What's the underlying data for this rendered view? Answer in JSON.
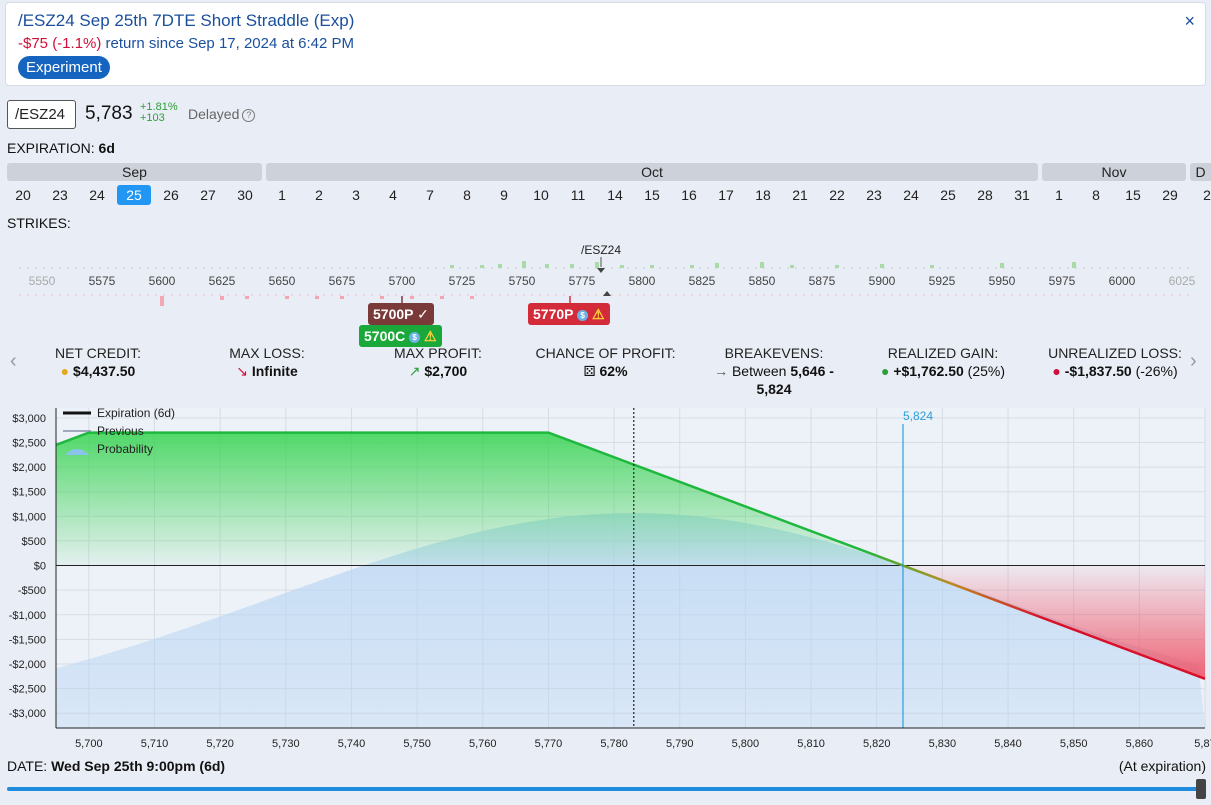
{
  "header": {
    "title": "/ESZ24 Sep 25th 7DTE Short Straddle (Exp)",
    "return_value": "-$75 (-1.1%)",
    "return_text": "return since Sep 17, 2024 at 6:42 PM",
    "badge": "Experiment",
    "close": "×"
  },
  "quote": {
    "symbol": "/ESZ24",
    "price": "5,783",
    "change_pct": "+1.81%",
    "change_abs": "+103",
    "delayed": "Delayed",
    "help": "?"
  },
  "expiration": {
    "label": "EXPIRATION:",
    "value": "6d"
  },
  "months": [
    "Sep",
    "Oct",
    "Nov",
    "D"
  ],
  "days": [
    "20",
    "23",
    "24",
    "25",
    "26",
    "27",
    "30",
    "1",
    "2",
    "3",
    "4",
    "7",
    "8",
    "9",
    "10",
    "11",
    "14",
    "15",
    "16",
    "17",
    "18",
    "21",
    "22",
    "23",
    "24",
    "25",
    "28",
    "31",
    "1",
    "8",
    "15",
    "29",
    "2"
  ],
  "selected_day_index": 3,
  "strikes": {
    "label": "STRIKES:",
    "underlying_label": "/ESZ24",
    "labels": [
      "5550",
      "5575",
      "5600",
      "5625",
      "5650",
      "5675",
      "5700",
      "5725",
      "5750",
      "5775",
      "5800",
      "5825",
      "5850",
      "5875",
      "5900",
      "5925",
      "5950",
      "5975",
      "6000",
      "6025"
    ],
    "legs": [
      {
        "text": "5700P",
        "suffix": "✓",
        "color": "brown"
      },
      {
        "text": "5700C",
        "suffix": "⚠",
        "color": "green"
      },
      {
        "text": "5770P",
        "suffix": "⚠",
        "color": "red"
      }
    ]
  },
  "stats": [
    {
      "label": "NET CREDIT:",
      "icon": "coins-icon",
      "value": "$4,437.50",
      "extra": ""
    },
    {
      "label": "MAX LOSS:",
      "icon": "down-arrow-icon",
      "value": "Infinite",
      "extra": ""
    },
    {
      "label": "MAX PROFIT:",
      "icon": "up-arrow-icon",
      "value": "$2,700",
      "extra": ""
    },
    {
      "label": "CHANCE OF PROFIT:",
      "icon": "dice-icon",
      "value": "62%",
      "extra": ""
    },
    {
      "label": "BREAKEVENS:",
      "icon": "right-arrow-icon",
      "value_prefix": "Between",
      "value": "5,646 -",
      "value2": "5,824"
    },
    {
      "label": "REALIZED GAIN:",
      "icon": "money-bag-icon",
      "value": "+$1,762.50",
      "extra": "(25%)"
    },
    {
      "label": "UNREALIZED LOSS:",
      "icon": "money-bag-icon",
      "value": "-$1,837.50",
      "extra": "(-26%)"
    }
  ],
  "chart_data": {
    "type": "line",
    "legend": [
      "Expiration (6d)",
      "Previous",
      "Probability"
    ],
    "legend_placement": "top-left",
    "x_ticks": [
      "5,700",
      "5,710",
      "5,720",
      "5,730",
      "5,740",
      "5,750",
      "5,760",
      "5,770",
      "5,780",
      "5,790",
      "5,800",
      "5,810",
      "5,820",
      "5,830",
      "5,840",
      "5,850",
      "5,860",
      "5,87"
    ],
    "y_ticks": [
      "$3,000",
      "$2,500",
      "$2,000",
      "$1,500",
      "$1,000",
      "$500",
      "$0",
      "-$500",
      "-$1,000",
      "-$1,500",
      "-$2,000",
      "-$2,500",
      "-$3,000"
    ],
    "xlim": [
      5695,
      5870
    ],
    "ylim": [
      -3300,
      3200
    ],
    "series": [
      {
        "name": "Expiration (6d)",
        "x": [
          5695,
          5700,
          5770,
          5824,
          5870
        ],
        "y": [
          2450,
          2700,
          2700,
          0,
          -2300
        ]
      }
    ],
    "current_price_x": 5783,
    "breakeven_x": 5824,
    "breakeven_label": "5,824",
    "grid": true
  },
  "footer": {
    "date_prefix": "DATE:",
    "date_value": "Wed Sep 25th 9:00pm (6d)",
    "at_expiration": "(At expiration)"
  },
  "colors": {
    "accent": "#1565c0",
    "profit": "#1db83c",
    "loss": "#d8102a",
    "breakeven_line": "#2a9fd6"
  }
}
